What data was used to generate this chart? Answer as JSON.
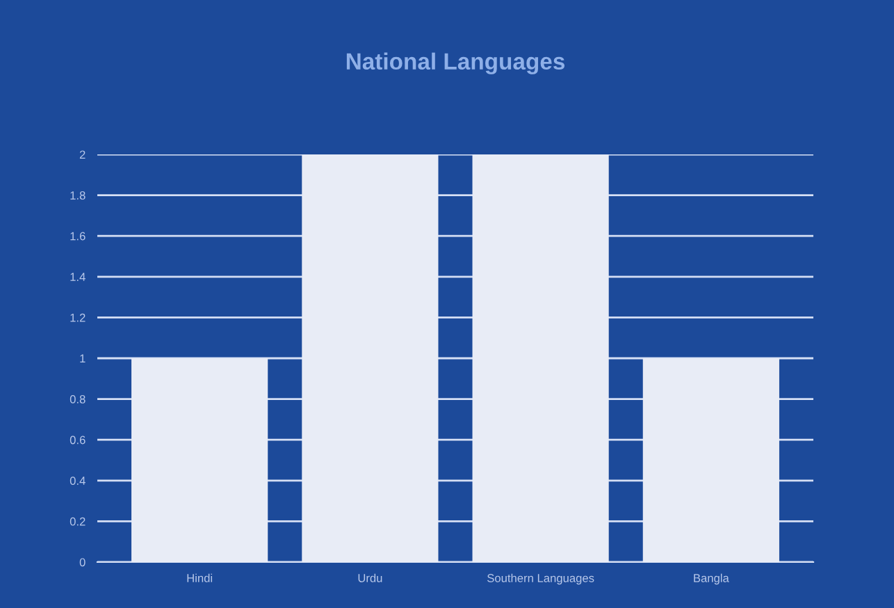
{
  "chart_data": {
    "type": "bar",
    "title": "National Languages",
    "categories": [
      "Hindi",
      "Urdu",
      "Southern Languages",
      "Bangla"
    ],
    "values": [
      1,
      2,
      2,
      1
    ],
    "color": "#e8ecf6",
    "ylim": [
      0,
      2
    ],
    "yticks": [
      0,
      0.2,
      0.4,
      0.6,
      0.8,
      1,
      1.2,
      1.4,
      1.6,
      1.8,
      2
    ],
    "grid": "y"
  }
}
